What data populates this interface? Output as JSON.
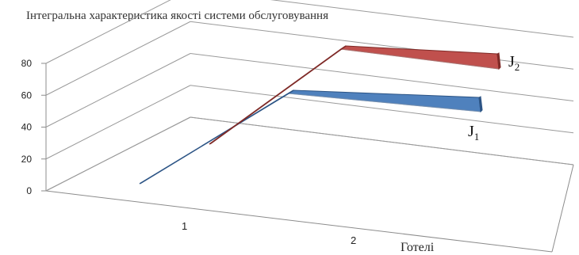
{
  "chart_data": {
    "type": "area",
    "subtype": "3d-ribbon",
    "title": "Інтегральна характеристика якості системи обслуговування",
    "xlabel": "Готелі",
    "ylabel": "",
    "categories": [
      "1",
      "2"
    ],
    "ylim": [
      0,
      80
    ],
    "yticks": [
      "0",
      "20",
      "40",
      "60",
      "80"
    ],
    "grid": true,
    "series": [
      {
        "name": "J",
        "subscript": "1",
        "values": [
          0,
          57
        ],
        "color": "#4f81bd"
      },
      {
        "name": "J",
        "subscript": "2",
        "values": [
          0,
          80
        ],
        "color": "#c0504d"
      }
    ]
  }
}
